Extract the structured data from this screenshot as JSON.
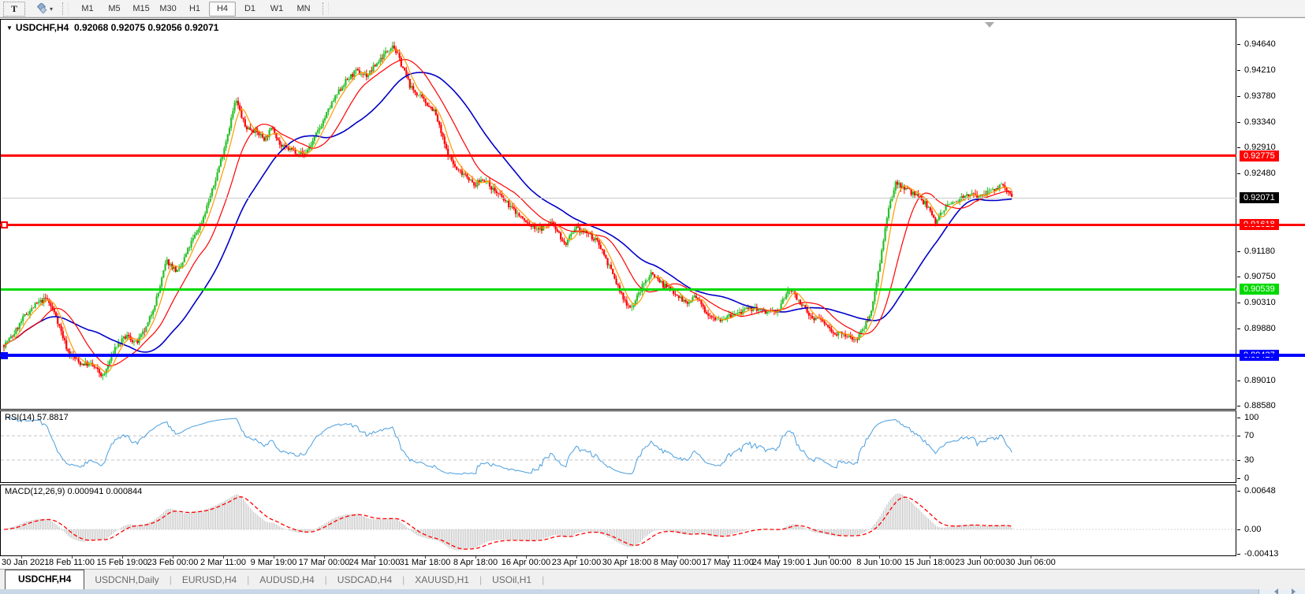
{
  "toolbar": {
    "text_tool": "T",
    "timeframes": [
      "M1",
      "M5",
      "M15",
      "M30",
      "H1",
      "H4",
      "D1",
      "W1",
      "MN"
    ],
    "active_timeframe": "H4"
  },
  "chart": {
    "title": "USDCHF,H4",
    "ohlc": "0.92068 0.92075 0.92056 0.92071",
    "current_price": "0.92071"
  },
  "rsi": {
    "label": "RSI(14) 57.8817",
    "levels": [
      100,
      70,
      30,
      0
    ]
  },
  "macd": {
    "label": "MACD(12,26,9) 0.000941 0.000844",
    "levels": [
      "0.00648",
      "0.00",
      "-0.00413"
    ]
  },
  "chart_data": {
    "type": "candlestick",
    "symbol": "USDCHF",
    "timeframe": "H4",
    "up_color": "#28c128",
    "down_color": "#ff0000",
    "ma_colors": {
      "fast": "#ff9900",
      "medium": "#ff0000",
      "slow": "#0000c8"
    },
    "rsi_color": "#4a9ede",
    "macd_hist_color": "#bdbdbd",
    "macd_signal_color": "#ff0000",
    "y_axis_ticks": [
      "0.94640",
      "0.94210",
      "0.93780",
      "0.93340",
      "0.92910",
      "0.92480",
      "0.91180",
      "0.90750",
      "0.90310",
      "0.89880",
      "0.89010",
      "0.88580"
    ],
    "y_range_visible": [
      0.8858,
      0.9464
    ],
    "current_price": 0.92071,
    "horizontal_lines": [
      {
        "price": 0.92775,
        "label": "0.92775",
        "color": "#ff0000",
        "thickness": 3,
        "full_width": false,
        "marker": "none"
      },
      {
        "price": 0.91618,
        "label": "0.91618",
        "color": "#ff0000",
        "thickness": 3,
        "full_width": true,
        "marker": "open"
      },
      {
        "price": 0.90539,
        "label": "0.90539",
        "color": "#00d900",
        "thickness": 3,
        "full_width": false,
        "marker": "none"
      },
      {
        "price": 0.89427,
        "label": "0.89427",
        "color": "#0000ff",
        "thickness": 4,
        "full_width": true,
        "marker": "solid"
      }
    ],
    "x_labels": [
      "30 Jan 2021",
      "8 Feb 11:00",
      "15 Feb 19:00",
      "23 Feb 00:00",
      "2 Mar 11:00",
      "9 Mar 19:00",
      "17 Mar 00:00",
      "24 Mar 10:00",
      "31 Mar 18:00",
      "8 Apr 18:00",
      "16 Apr 00:00",
      "23 Apr 10:00",
      "30 Apr 18:00",
      "8 May 00:00",
      "17 May 11:00",
      "24 May 19:00",
      "1 Jun 00:00",
      "8 Jun 10:00",
      "15 Jun 18:00",
      "23 Jun 00:00",
      "30 Jun 06:00"
    ],
    "close_path": [
      [
        4,
        0.8962
      ],
      [
        15,
        0.8977
      ],
      [
        30,
        0.901
      ],
      [
        45,
        0.903
      ],
      [
        58,
        0.904
      ],
      [
        70,
        0.901
      ],
      [
        85,
        0.8951
      ],
      [
        100,
        0.8931
      ],
      [
        115,
        0.8929
      ],
      [
        130,
        0.8908
      ],
      [
        145,
        0.8958
      ],
      [
        160,
        0.8977
      ],
      [
        172,
        0.8964
      ],
      [
        185,
        0.8991
      ],
      [
        200,
        0.905
      ],
      [
        210,
        0.9103
      ],
      [
        225,
        0.9083
      ],
      [
        240,
        0.9129
      ],
      [
        255,
        0.9169
      ],
      [
        270,
        0.9228
      ],
      [
        285,
        0.9301
      ],
      [
        298,
        0.9373
      ],
      [
        310,
        0.9327
      ],
      [
        322,
        0.9321
      ],
      [
        335,
        0.9307
      ],
      [
        345,
        0.9327
      ],
      [
        355,
        0.9294
      ],
      [
        370,
        0.9288
      ],
      [
        385,
        0.9281
      ],
      [
        395,
        0.9301
      ],
      [
        405,
        0.9327
      ],
      [
        420,
        0.9367
      ],
      [
        435,
        0.94
      ],
      [
        450,
        0.942
      ],
      [
        465,
        0.9413
      ],
      [
        480,
        0.9439
      ],
      [
        497,
        0.9466
      ],
      [
        510,
        0.9426
      ],
      [
        520,
        0.9393
      ],
      [
        535,
        0.9373
      ],
      [
        550,
        0.9354
      ],
      [
        565,
        0.9288
      ],
      [
        578,
        0.9255
      ],
      [
        590,
        0.9248
      ],
      [
        600,
        0.9228
      ],
      [
        612,
        0.9241
      ],
      [
        625,
        0.9222
      ],
      [
        640,
        0.9202
      ],
      [
        655,
        0.9182
      ],
      [
        670,
        0.9162
      ],
      [
        685,
        0.9156
      ],
      [
        700,
        0.9169
      ],
      [
        715,
        0.9129
      ],
      [
        730,
        0.9156
      ],
      [
        745,
        0.9149
      ],
      [
        760,
        0.9129
      ],
      [
        775,
        0.9083
      ],
      [
        790,
        0.9037
      ],
      [
        800,
        0.9024
      ],
      [
        815,
        0.9063
      ],
      [
        825,
        0.9083
      ],
      [
        840,
        0.9063
      ],
      [
        855,
        0.905
      ],
      [
        870,
        0.903
      ],
      [
        880,
        0.9043
      ],
      [
        895,
        0.9017
      ],
      [
        910,
        0.9004
      ],
      [
        925,
        0.901
      ],
      [
        940,
        0.9017
      ],
      [
        955,
        0.9024
      ],
      [
        970,
        0.9017
      ],
      [
        985,
        0.9017
      ],
      [
        1000,
        0.9057
      ],
      [
        1012,
        0.9037
      ],
      [
        1025,
        0.901
      ],
      [
        1040,
        0.9004
      ],
      [
        1055,
        0.8984
      ],
      [
        1070,
        0.8977
      ],
      [
        1085,
        0.8971
      ],
      [
        1095,
        0.8991
      ],
      [
        1105,
        0.9024
      ],
      [
        1115,
        0.9103
      ],
      [
        1125,
        0.9182
      ],
      [
        1135,
        0.9235
      ],
      [
        1150,
        0.9222
      ],
      [
        1165,
        0.9208
      ],
      [
        1175,
        0.9195
      ],
      [
        1185,
        0.9168
      ],
      [
        1195,
        0.9189
      ],
      [
        1210,
        0.9202
      ],
      [
        1225,
        0.9215
      ],
      [
        1240,
        0.9208
      ],
      [
        1255,
        0.9222
      ],
      [
        1270,
        0.9228
      ],
      [
        1283,
        0.92071
      ]
    ],
    "indicators": [
      {
        "name": "RSI",
        "params": "14",
        "value": "57.8817",
        "levels": [
          100,
          70,
          30,
          0
        ]
      },
      {
        "name": "MACD",
        "params": "12,26,9",
        "values": [
          "0.000941",
          "0.000844"
        ],
        "levels": [
          0.00648,
          0.0,
          -0.00413
        ]
      }
    ]
  },
  "tabs": [
    {
      "label": "USDCHF,H4",
      "active": true
    },
    {
      "label": "USDCNH,Daily",
      "active": false
    },
    {
      "label": "EURUSD,H4",
      "active": false
    },
    {
      "label": "AUDUSD,H4",
      "active": false
    },
    {
      "label": "USDCAD,H4",
      "active": false
    },
    {
      "label": "XAUUSD,H1",
      "active": false
    },
    {
      "label": "USOil,H1",
      "active": false
    }
  ]
}
